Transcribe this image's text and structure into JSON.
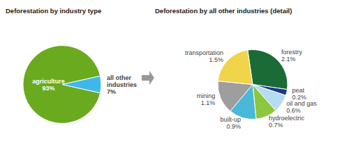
{
  "chart_data": [
    {
      "type": "pie",
      "title": "Deforestation by industry type",
      "categories": [
        "agriculture",
        "all other\nindustries"
      ],
      "values": [
        93,
        7
      ],
      "value_labels": [
        "93%",
        "7%"
      ],
      "colors": [
        "#6aaa1e",
        "#3eb8ea"
      ],
      "data_labels": true
    },
    {
      "type": "pie",
      "title": "Deforestation by all other industries (detail)",
      "categories": [
        "forestry",
        "peat",
        "oil and gas",
        "hydroelectric",
        "built-up",
        "mining",
        "transportation"
      ],
      "values": [
        2.1,
        0.2,
        0.6,
        0.7,
        0.9,
        1.1,
        1.5
      ],
      "value_labels": [
        "2.1%",
        "0.2%",
        "0.6%",
        "0.7%",
        "0.9%",
        "1.1%",
        "1.5%"
      ],
      "colors": [
        "#1a6b35",
        "#1a3a8c",
        "#b5dcf0",
        "#8dc63f",
        "#4ab8d8",
        "#9e9e9e",
        "#f0d44a"
      ],
      "data_labels": true
    }
  ]
}
